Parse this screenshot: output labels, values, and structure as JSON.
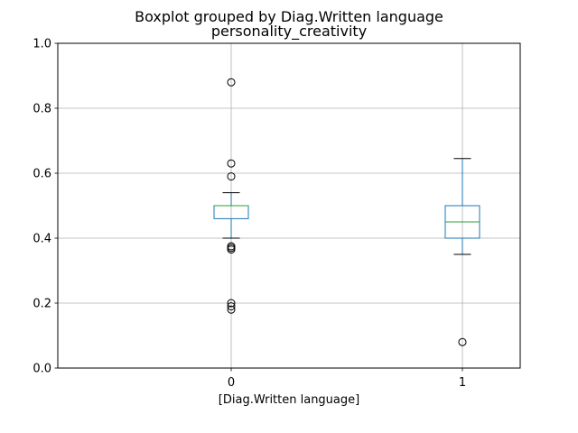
{
  "chart_data": {
    "type": "boxplot",
    "suptitle": "Boxplot grouped by Diag.Written language",
    "title": "personality_creativity",
    "xlabel": "[Diag.Written language]",
    "ylabel": "",
    "ylim": [
      0,
      1
    ],
    "yticks": [
      0.0,
      0.2,
      0.4,
      0.6,
      0.8,
      1.0
    ],
    "ytick_labels": [
      "0.0",
      "0.2",
      "0.4",
      "0.6",
      "0.8",
      "1.0"
    ],
    "grid": true,
    "colors": {
      "box": "#1f77b4",
      "median": "#2ca02c",
      "whisker": "#1f77b4",
      "cap": "#000000",
      "flier": "#000000",
      "grid": "#b0b0b0"
    },
    "groups": [
      {
        "label": "0",
        "whisker_low": 0.4,
        "q1": 0.46,
        "median": 0.5,
        "q3": 0.5,
        "whisker_high": 0.54,
        "fliers": [
          0.88,
          0.63,
          0.59,
          0.375,
          0.37,
          0.365,
          0.2,
          0.19,
          0.18
        ]
      },
      {
        "label": "1",
        "whisker_low": 0.35,
        "q1": 0.4,
        "median": 0.45,
        "q3": 0.5,
        "whisker_high": 0.645,
        "fliers": [
          0.08
        ]
      }
    ]
  }
}
